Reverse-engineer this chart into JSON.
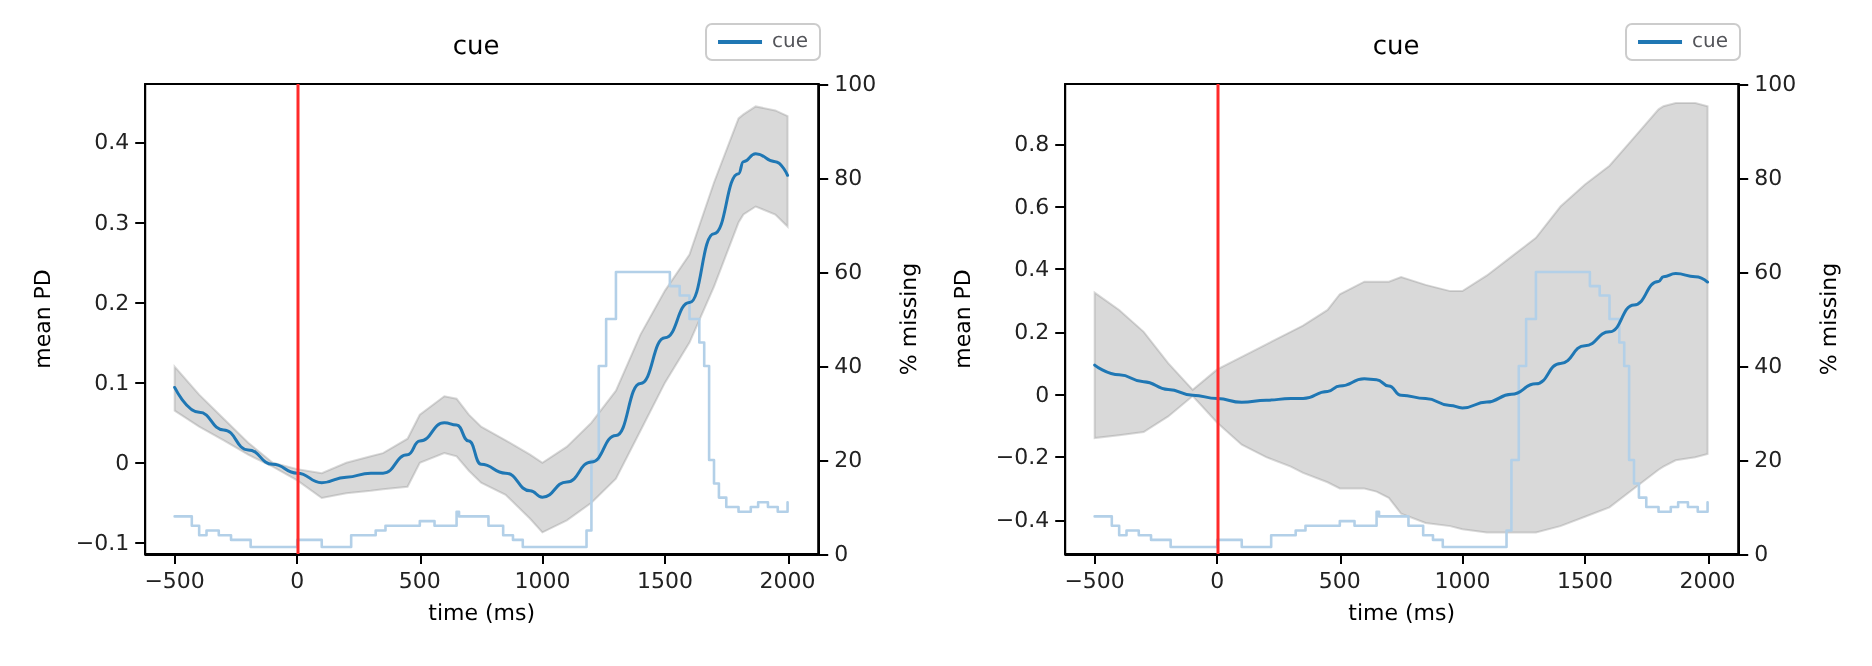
{
  "chart_data": [
    {
      "type": "line",
      "title": "cue",
      "xlabel": "time (ms)",
      "ylabel": "mean PD",
      "y2label": "% missing",
      "legend": "top right",
      "grid": false,
      "marker": "none",
      "line_style": "solid",
      "xlim": [
        -620,
        2125
      ],
      "xticks": [
        -500,
        0,
        500,
        1000,
        1500,
        2000
      ],
      "ylim": [
        -0.114,
        0.473
      ],
      "yticks": [
        -0.1,
        0.0,
        0.1,
        0.2,
        0.3,
        0.4
      ],
      "y2lim": [
        0,
        100
      ],
      "y2ticks": [
        0,
        20,
        40,
        60,
        80,
        100
      ],
      "ref_lines": [
        {
          "axis": "x",
          "value": 0,
          "color": "#ff2a2a"
        }
      ],
      "x": [
        -500,
        -400,
        -300,
        -200,
        -100,
        0,
        100,
        200,
        300,
        350,
        450,
        500,
        600,
        650,
        700,
        750,
        850,
        950,
        1000,
        1100,
        1200,
        1300,
        1400,
        1500,
        1600,
        1700,
        1800,
        1820,
        1870,
        1950,
        2000
      ],
      "series": [
        {
          "name": "cue",
          "color": "#1f77b4",
          "values": [
            0.094,
            0.063,
            0.041,
            0.016,
            -0.002,
            -0.013,
            -0.025,
            -0.018,
            -0.013,
            -0.013,
            0.01,
            0.027,
            0.05,
            0.047,
            0.027,
            -0.002,
            -0.013,
            -0.035,
            -0.043,
            -0.024,
            0.001,
            0.034,
            0.099,
            0.156,
            0.2,
            0.286,
            0.361,
            0.376,
            0.386,
            0.376,
            0.359
          ],
          "lower": [
            0.065,
            0.045,
            0.028,
            0.01,
            -0.005,
            -0.022,
            -0.044,
            -0.038,
            -0.035,
            -0.033,
            -0.03,
            0.0,
            0.012,
            0.008,
            -0.01,
            -0.025,
            -0.04,
            -0.07,
            -0.087,
            -0.072,
            -0.05,
            -0.02,
            0.04,
            0.1,
            0.15,
            0.22,
            0.3,
            0.31,
            0.32,
            0.31,
            0.295
          ],
          "upper": [
            0.12,
            0.085,
            0.055,
            0.025,
            0.0,
            -0.008,
            -0.013,
            0.0,
            0.008,
            0.012,
            0.03,
            0.06,
            0.083,
            0.08,
            0.06,
            0.045,
            0.028,
            0.01,
            0.0,
            0.02,
            0.05,
            0.09,
            0.16,
            0.215,
            0.26,
            0.35,
            0.43,
            0.435,
            0.445,
            0.44,
            0.433
          ]
        },
        {
          "type": "step",
          "axis": "y2",
          "color": "#b3d0e8",
          "x": [
            -500,
            -430,
            -400,
            -370,
            -320,
            -270,
            -190,
            0,
            100,
            220,
            320,
            360,
            500,
            560,
            650,
            660,
            780,
            840,
            880,
            920,
            1160,
            1180,
            1200,
            1230,
            1260,
            1300,
            1500,
            1520,
            1560,
            1600,
            1640,
            1660,
            1680,
            1700,
            1720,
            1750,
            1800,
            1850,
            1880,
            1920,
            1960,
            2000
          ],
          "values": [
            8,
            6,
            4,
            5,
            4,
            3,
            1.5,
            3,
            1.5,
            4,
            5,
            6,
            7,
            6,
            9,
            8,
            6,
            4,
            3,
            1.5,
            1.5,
            5,
            20,
            40,
            50,
            60,
            60,
            57,
            55,
            50,
            45,
            40,
            20,
            15,
            12,
            10,
            9,
            10,
            11,
            10,
            9,
            11
          ]
        }
      ]
    },
    {
      "type": "line",
      "title": "cue",
      "xlabel": "time (ms)",
      "ylabel": "mean PD",
      "y2label": "% missing",
      "legend": "top right",
      "grid": false,
      "marker": "none",
      "line_style": "solid",
      "xlim": [
        -620,
        2125
      ],
      "xticks": [
        -500,
        0,
        500,
        1000,
        1500,
        2000
      ],
      "ylim": [
        -0.509,
        0.991
      ],
      "yticks": [
        -0.4,
        -0.2,
        0.0,
        0.2,
        0.4,
        0.6,
        0.8
      ],
      "y2lim": [
        0,
        100
      ],
      "y2ticks": [
        0,
        20,
        40,
        60,
        80,
        100
      ],
      "ref_lines": [
        {
          "axis": "x",
          "value": 0,
          "color": "#ff2a2a"
        }
      ],
      "x": [
        -500,
        -400,
        -300,
        -200,
        -100,
        0,
        100,
        200,
        300,
        350,
        450,
        500,
        600,
        650,
        700,
        750,
        850,
        950,
        1000,
        1100,
        1200,
        1300,
        1400,
        1500,
        1600,
        1700,
        1800,
        1820,
        1870,
        1950,
        2000
      ],
      "series": [
        {
          "name": "cue",
          "color": "#1f77b4",
          "values": [
            0.094,
            0.063,
            0.041,
            0.016,
            -0.002,
            -0.013,
            -0.025,
            -0.018,
            -0.013,
            -0.013,
            0.01,
            0.027,
            0.05,
            0.047,
            0.027,
            -0.002,
            -0.013,
            -0.035,
            -0.043,
            -0.024,
            0.001,
            0.034,
            0.099,
            0.156,
            0.2,
            0.286,
            0.361,
            0.376,
            0.386,
            0.376,
            0.359
          ],
          "lower": [
            -0.139,
            -0.13,
            -0.12,
            -0.07,
            -0.005,
            -0.09,
            -0.16,
            -0.2,
            -0.23,
            -0.25,
            -0.28,
            -0.3,
            -0.3,
            -0.31,
            -0.33,
            -0.38,
            -0.41,
            -0.42,
            -0.43,
            -0.44,
            -0.44,
            -0.44,
            -0.42,
            -0.39,
            -0.36,
            -0.3,
            -0.24,
            -0.23,
            -0.21,
            -0.2,
            -0.19
          ],
          "upper": [
            0.325,
            0.27,
            0.2,
            0.1,
            0.015,
            0.08,
            0.12,
            0.16,
            0.2,
            0.22,
            0.27,
            0.32,
            0.36,
            0.36,
            0.36,
            0.375,
            0.35,
            0.33,
            0.33,
            0.38,
            0.44,
            0.5,
            0.6,
            0.67,
            0.73,
            0.82,
            0.91,
            0.92,
            0.93,
            0.93,
            0.92
          ]
        },
        {
          "type": "step",
          "axis": "y2",
          "color": "#b3d0e8",
          "x": [
            -500,
            -430,
            -400,
            -370,
            -320,
            -270,
            -190,
            0,
            100,
            220,
            320,
            360,
            500,
            560,
            650,
            660,
            780,
            840,
            880,
            920,
            1160,
            1180,
            1200,
            1230,
            1260,
            1300,
            1500,
            1520,
            1560,
            1600,
            1640,
            1660,
            1680,
            1700,
            1720,
            1750,
            1800,
            1850,
            1880,
            1920,
            1960,
            2000
          ],
          "values": [
            8,
            6,
            4,
            5,
            4,
            3,
            1.5,
            3,
            1.5,
            4,
            5,
            6,
            7,
            6,
            9,
            8,
            6,
            4,
            3,
            1.5,
            1.5,
            5,
            20,
            40,
            50,
            60,
            60,
            57,
            55,
            50,
            45,
            40,
            20,
            15,
            12,
            10,
            9,
            10,
            11,
            10,
            9,
            11
          ]
        }
      ]
    }
  ]
}
